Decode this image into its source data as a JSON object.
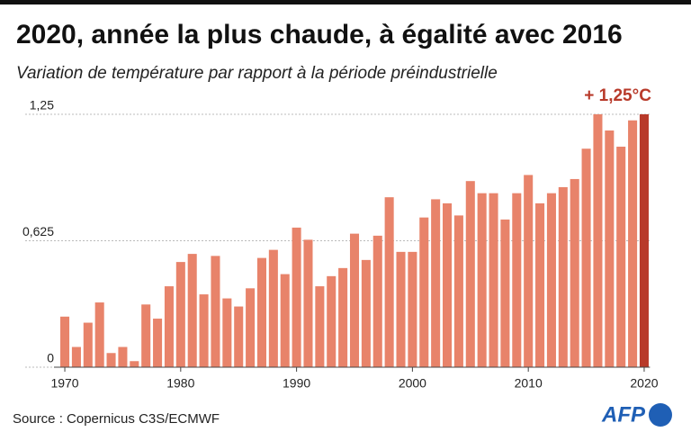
{
  "chart_data": {
    "type": "bar",
    "title": "2020, année la plus chaude, à égalité avec 2016",
    "subtitle": "Variation de température par rapport à la période préindustrielle",
    "annotation": "+ 1,25°C",
    "annotation_color": "#b83a2a",
    "source": "Source : Copernicus C3S/ECMWF",
    "logo": "AFP",
    "x": [
      1970,
      1971,
      1972,
      1973,
      1974,
      1975,
      1976,
      1977,
      1978,
      1979,
      1980,
      1981,
      1982,
      1983,
      1984,
      1985,
      1986,
      1987,
      1988,
      1989,
      1990,
      1991,
      1992,
      1993,
      1994,
      1995,
      1996,
      1997,
      1998,
      1999,
      2000,
      2001,
      2002,
      2003,
      2004,
      2005,
      2006,
      2007,
      2008,
      2009,
      2010,
      2011,
      2012,
      2013,
      2014,
      2015,
      2016,
      2017,
      2018,
      2019,
      2020
    ],
    "values": [
      0.25,
      0.1,
      0.22,
      0.32,
      0.07,
      0.1,
      0.03,
      0.31,
      0.24,
      0.4,
      0.52,
      0.56,
      0.36,
      0.55,
      0.34,
      0.3,
      0.39,
      0.54,
      0.58,
      0.46,
      0.69,
      0.63,
      0.4,
      0.45,
      0.49,
      0.66,
      0.53,
      0.65,
      0.84,
      0.57,
      0.57,
      0.74,
      0.83,
      0.81,
      0.75,
      0.92,
      0.86,
      0.86,
      0.73,
      0.86,
      0.95,
      0.81,
      0.86,
      0.89,
      0.93,
      1.08,
      1.25,
      1.17,
      1.09,
      1.22,
      1.25
    ],
    "colors": [
      "#e8836a",
      "#e8836a",
      "#e8836a",
      "#e8836a",
      "#e8836a",
      "#e8836a",
      "#e8836a",
      "#e8836a",
      "#e8836a",
      "#e8836a",
      "#e8836a",
      "#e8836a",
      "#e8836a",
      "#e8836a",
      "#e8836a",
      "#e8836a",
      "#e8836a",
      "#e8836a",
      "#e8836a",
      "#e8836a",
      "#e8836a",
      "#e8836a",
      "#e8836a",
      "#e8836a",
      "#e8836a",
      "#e8836a",
      "#e8836a",
      "#e8836a",
      "#e8836a",
      "#e8836a",
      "#e8836a",
      "#e8836a",
      "#e8836a",
      "#e8836a",
      "#e8836a",
      "#e8836a",
      "#e8836a",
      "#e8836a",
      "#e8836a",
      "#e8836a",
      "#e8836a",
      "#e8836a",
      "#e8836a",
      "#e8836a",
      "#e8836a",
      "#e8836a",
      "#e8836a",
      "#e8836a",
      "#e8836a",
      "#e8836a",
      "#b83a2a"
    ],
    "xlim": [
      1969.5,
      2020.5
    ],
    "xticks": [
      1970,
      1980,
      1990,
      2000,
      2010,
      2020
    ],
    "ylim": [
      0,
      1.25
    ],
    "yticks": [
      0,
      {
        "value": 0.625,
        "label": "0,625"
      },
      {
        "value": 1.25,
        "label": "1,25"
      }
    ],
    "grid": true
  }
}
